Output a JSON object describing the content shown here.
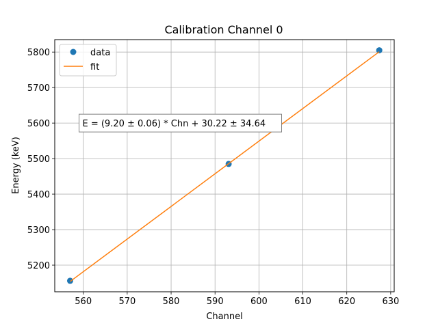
{
  "chart_data": {
    "type": "scatter",
    "title": "Calibration Channel 0",
    "xlabel": "Channel",
    "ylabel": "Energy (keV)",
    "xlim": [
      553.5,
      630.8
    ],
    "ylim": [
      5125,
      5835
    ],
    "xticks": [
      560,
      570,
      580,
      590,
      600,
      610,
      620,
      630
    ],
    "yticks": [
      5200,
      5300,
      5400,
      5500,
      5600,
      5700,
      5800
    ],
    "grid": true,
    "legend": {
      "position": "top-left",
      "entries": [
        "data",
        "fit"
      ]
    },
    "series": [
      {
        "name": "data",
        "kind": "markers",
        "color": "#1f77b4",
        "points": [
          {
            "x": 557.0,
            "y": 5156
          },
          {
            "x": 593.1,
            "y": 5485
          },
          {
            "x": 627.4,
            "y": 5805
          }
        ]
      },
      {
        "name": "fit",
        "kind": "line",
        "color": "#ff7f0e",
        "points": [
          {
            "x": 557.0,
            "y": 5154
          },
          {
            "x": 627.4,
            "y": 5801
          }
        ]
      }
    ],
    "annotation": {
      "text": "E = (9.20 ± 0.06) * Chn + 30.22 ± 34.64",
      "x": 559.5,
      "y": 5600
    }
  }
}
